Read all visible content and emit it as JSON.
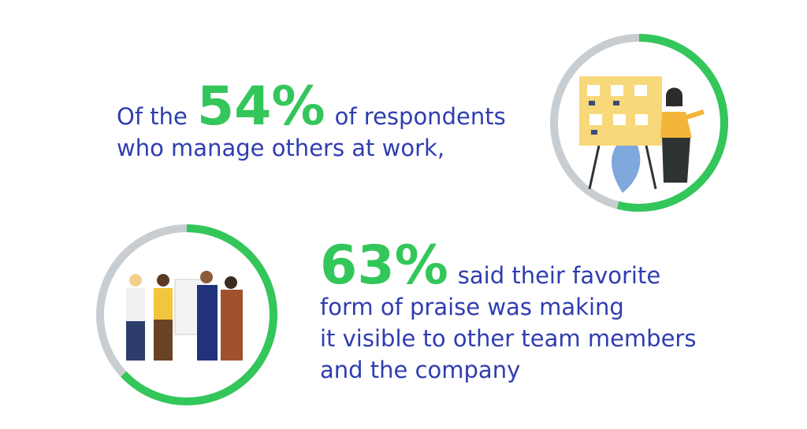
{
  "stats": [
    {
      "value": 54,
      "value_label": "54%",
      "before": "Of the",
      "after": "of respondents",
      "lines": [
        "who manage others at work,"
      ]
    },
    {
      "value": 63,
      "value_label": "63%",
      "after": "said their favorite",
      "lines": [
        "form of praise was making",
        "it visible to other team members",
        "and the company"
      ]
    }
  ]
}
